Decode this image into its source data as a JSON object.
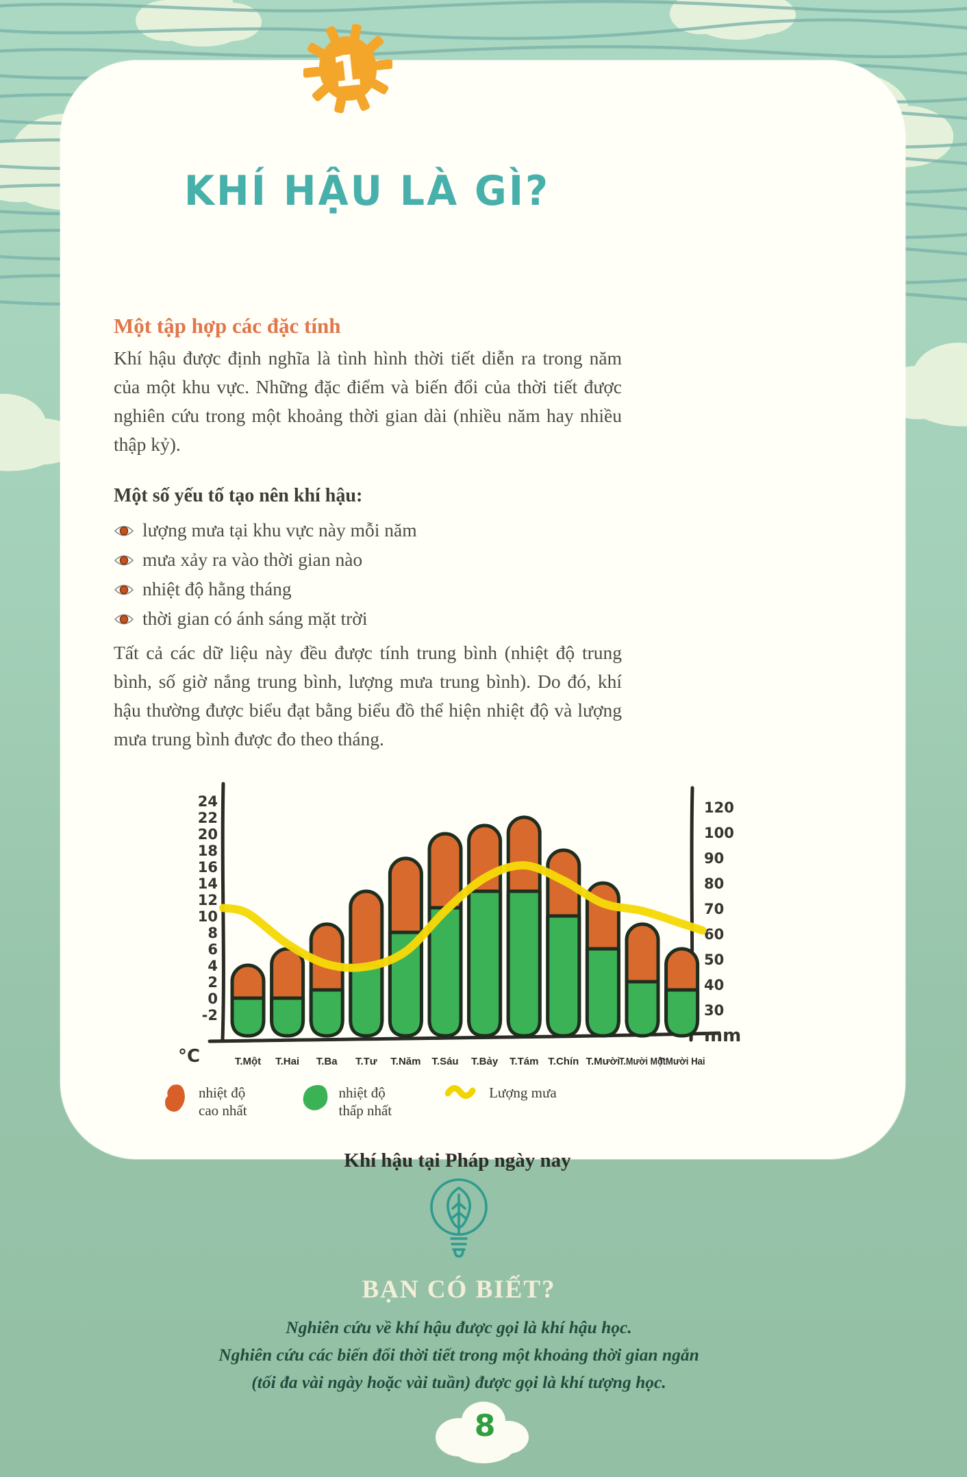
{
  "page": {
    "chapter_number": "1",
    "title": "KHÍ HẬU LÀ GÌ?",
    "page_number": "8"
  },
  "content": {
    "section_heading": "Một tập hợp các đặc tính",
    "paragraph_1": "Khí hậu được định nghĩa là tình hình thời tiết diễn ra trong năm của một khu vực. Những đặc điểm và biến đổi của thời tiết được nghiên cứu trong một khoảng thời gian dài (nhiều năm hay nhiều thập kỷ).",
    "list_lead": "Một số yếu tố tạo nên khí hậu:",
    "bullets": [
      "lượng mưa tại khu vực này mỗi năm",
      "mưa xảy ra vào thời gian nào",
      "nhiệt độ hằng tháng",
      "thời gian có ánh sáng mặt trời"
    ],
    "paragraph_2": "Tất cả các dữ liệu này đều được tính trung bình (nhiệt độ trung bình, số giờ nắng trung bình, lượng mưa trung bình). Do đó, khí hậu thường được biểu đạt bằng biểu đồ thể hiện nhiệt độ và lượng mưa trung bình được đo theo tháng."
  },
  "chart_data": {
    "type": "bar",
    "subtype": "stacked-temperature-bars-with-rain-line",
    "categories": [
      "T.Một",
      "T.Hai",
      "T.Ba",
      "T.Tư",
      "T.Năm",
      "T.Sáu",
      "T.Bảy",
      "T.Tám",
      "T.Chín",
      "T.Mười",
      "T.Mười Một",
      "T.Mười Hai"
    ],
    "series": [
      {
        "name": "nhiệt độ cao nhất",
        "type": "bar",
        "color": "#d96a2e",
        "unit": "°C",
        "values": [
          4,
          6,
          9,
          13,
          17,
          20,
          21,
          22,
          18,
          14,
          9,
          6
        ]
      },
      {
        "name": "nhiệt độ thấp nhất",
        "type": "bar",
        "color": "#3cb257",
        "unit": "°C",
        "values": [
          0,
          0,
          1,
          4,
          8,
          11,
          13,
          13,
          10,
          6,
          2,
          1
        ]
      },
      {
        "name": "Lượng mưa",
        "type": "line",
        "color": "#f6d908",
        "unit": "mm",
        "values": [
          68,
          56,
          48,
          47,
          53,
          69,
          82,
          87,
          81,
          72,
          69,
          64
        ]
      }
    ],
    "left_axis": {
      "unit": "°C",
      "ticks": [
        24,
        22,
        20,
        18,
        16,
        14,
        12,
        10,
        8,
        6,
        4,
        2,
        0,
        -2
      ]
    },
    "right_axis": {
      "unit": "mm",
      "ticks": [
        120,
        100,
        90,
        80,
        70,
        60,
        50,
        40,
        30
      ]
    },
    "legend": [
      {
        "swatch": "blob-orange",
        "label_line1": "nhiệt độ",
        "label_line2": "cao nhất"
      },
      {
        "swatch": "blob-green",
        "label_line1": "nhiệt độ",
        "label_line2": "thấp nhất"
      },
      {
        "swatch": "line-yellow",
        "label_line1": "Lượng mưa",
        "label_line2": ""
      }
    ],
    "caption": "Khí hậu tại Pháp ngày nay",
    "grid": false,
    "legend_position": "bottom"
  },
  "did_you_know": {
    "heading": "BẠN CÓ BIẾT?",
    "lines": [
      "Nghiên cứu về khí hậu được gọi là khí hậu học.",
      "Nghiên cứu các biến đổi thời tiết trong một khoảng thời gian ngắn",
      "(tối đa vài ngày hoặc vài tuần) được gọi là khí tượng học."
    ]
  },
  "colors": {
    "accent_teal": "#48b0aa",
    "accent_orange": "#e0764c",
    "sun_orange": "#f4a62b",
    "bar_outline": "#1f2d1f",
    "page_bg_top": "#abd8c2",
    "page_bg_bottom": "#93c0a5",
    "card_bg": "#fffef7",
    "wave_line": "#7ab3a9",
    "cloud_cream": "#e9f3dd",
    "dyk_heading": "#f4eed9",
    "page_number_green": "#2f9e3f"
  }
}
